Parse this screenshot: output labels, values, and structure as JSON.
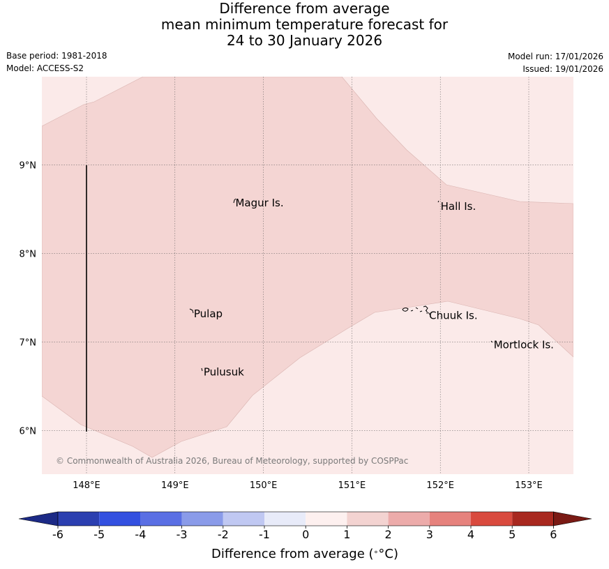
{
  "title": {
    "line1": "Difference from average",
    "line2": "mean minimum temperature forecast for",
    "line3": "24 to 30 January 2026"
  },
  "meta": {
    "base_period": "Base period: 1981-2018",
    "model": "Model: ACCESS-S2",
    "model_run": "Model run: 17/01/2026",
    "issued": "Issued: 19/01/2026"
  },
  "map": {
    "x_ticks": [
      "148°E",
      "149°E",
      "150°E",
      "151°E",
      "152°E",
      "153°E"
    ],
    "y_ticks": [
      "9°N",
      "8°N",
      "7°N",
      "6°N"
    ],
    "places": [
      {
        "name": "Magur Is.",
        "lon": 149.66,
        "lat": 8.57
      },
      {
        "name": "Hall Is.",
        "lon": 151.98,
        "lat": 8.53
      },
      {
        "name": "Pulap",
        "lon": 149.19,
        "lat": 7.32
      },
      {
        "name": "Chuuk Is.",
        "lon": 151.85,
        "lat": 7.3
      },
      {
        "name": "Mortlock Is.",
        "lon": 152.58,
        "lat": 6.97
      },
      {
        "name": "Pulusuk",
        "lon": 149.3,
        "lat": 6.66
      }
    ],
    "shading_colors": {
      "band_0_1": "#fbeae9",
      "band_1_2": "#f4d5d3"
    },
    "copyright": "© Commonwealth of Australia 2026, Bureau of Meteorology, supported by COSPPac"
  },
  "colorbar": {
    "ticks": [
      "-6",
      "-5",
      "-4",
      "-3",
      "-2",
      "-1",
      "0",
      "1",
      "2",
      "3",
      "4",
      "5",
      "6"
    ],
    "colors": [
      "#2b3fb0",
      "#3350e0",
      "#5a6fe4",
      "#8a9be9",
      "#c0c8f2",
      "#e8ebf9",
      "#fdf0ef",
      "#f3d3d1",
      "#ecabaa",
      "#e6827d",
      "#d94a3e",
      "#a8281f"
    ],
    "under_color": "#1c2a86",
    "over_color": "#7a1a14",
    "label": "Difference from average ($^\\circ$C)",
    "label_text": "Difference from average (",
    "label_unit": "°C)"
  }
}
